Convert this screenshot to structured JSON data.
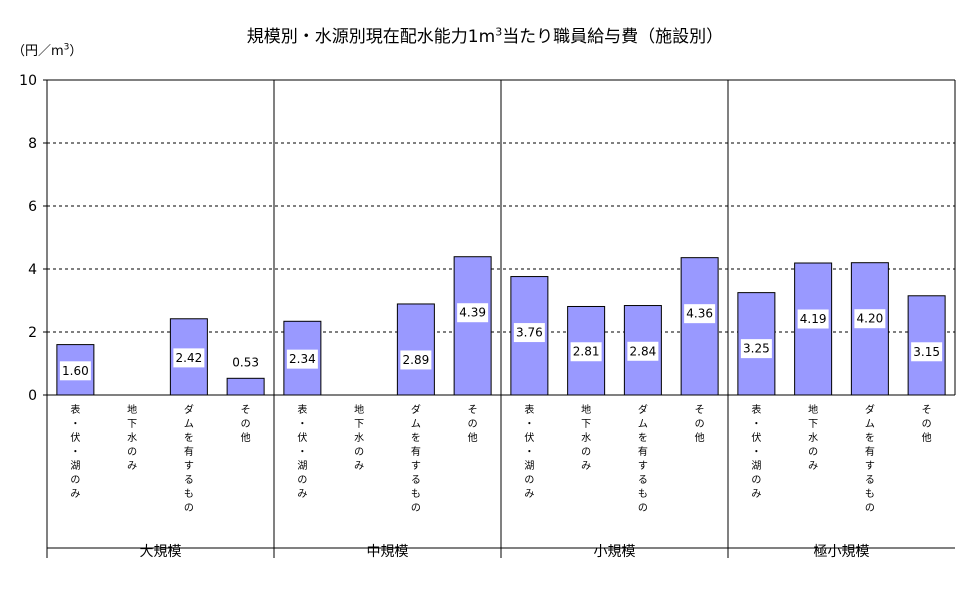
{
  "chart_data": {
    "type": "bar",
    "title_main": "規模別・水源別現在配水能力1m",
    "title_sup": "3",
    "title_rest": "当たり職員給与費（施設別）",
    "unit_main": "（円／m",
    "unit_sup": "3",
    "unit_rest": "）",
    "ylim": [
      0,
      10
    ],
    "yticks": [
      0,
      2,
      4,
      6,
      8,
      10
    ],
    "grid": "dashed-horizontal",
    "bar_color": "#9999ff",
    "groups": [
      {
        "name": "大規模",
        "categories": [
          "表・伏・湖のみ",
          "地下水のみ",
          "ダムを有するもの",
          "その他"
        ],
        "values": [
          1.6,
          null,
          2.42,
          0.53
        ],
        "labels": [
          "1.60",
          "",
          "2.42",
          "0.53"
        ]
      },
      {
        "name": "中規模",
        "categories": [
          "表・伏・湖のみ",
          "地下水のみ",
          "ダムを有するもの",
          "その他"
        ],
        "values": [
          2.34,
          null,
          2.89,
          4.39
        ],
        "labels": [
          "2.34",
          "",
          "2.89",
          "4.39"
        ]
      },
      {
        "name": "小規模",
        "categories": [
          "表・伏・湖のみ",
          "地下水のみ",
          "ダムを有するもの",
          "その他"
        ],
        "values": [
          3.76,
          2.81,
          2.84,
          4.36
        ],
        "labels": [
          "3.76",
          "2.81",
          "2.84",
          "4.36"
        ]
      },
      {
        "name": "極小規模",
        "categories": [
          "表・伏・湖のみ",
          "地下水のみ",
          "ダムを有するもの",
          "その他"
        ],
        "values": [
          3.25,
          4.19,
          4.2,
          3.15
        ],
        "labels": [
          "3.25",
          "4.19",
          "4.20",
          "3.15"
        ]
      }
    ]
  }
}
